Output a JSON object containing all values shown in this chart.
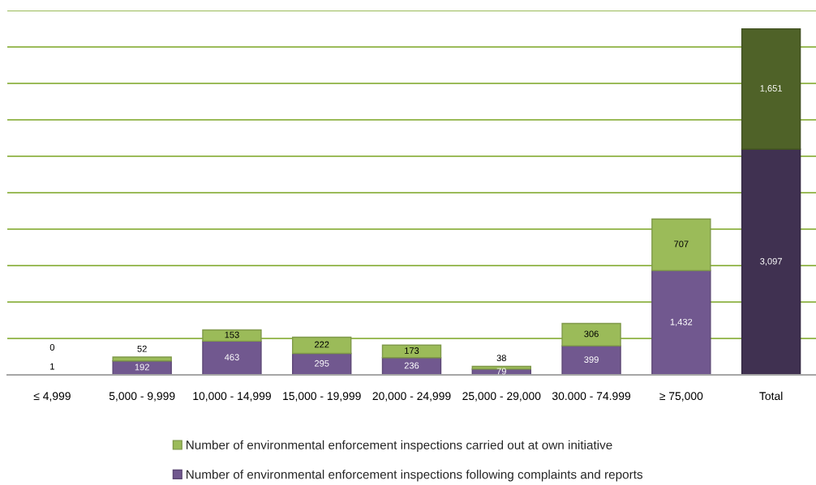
{
  "chart_data": {
    "type": "bar",
    "stacked": true,
    "categories": [
      "≤ 4,999",
      "5,000 - 9,999",
      "10,000 - 14,999",
      "15,000 - 19,999",
      "20,000 - 24,999",
      "25,000 - 29,000",
      "30.000 - 74.999",
      "≥ 75,000",
      "Total"
    ],
    "series": [
      {
        "name": "Number of environmental enforcement inspections following complaints and reports",
        "color": "#71588f",
        "colors": [
          "#71588f",
          "#71588f",
          "#71588f",
          "#71588f",
          "#71588f",
          "#71588f",
          "#71588f",
          "#71588f",
          "#403151"
        ],
        "values": [
          1,
          192,
          463,
          295,
          236,
          79,
          399,
          1432,
          3097
        ],
        "value_labels": [
          "1",
          "192",
          "463",
          "295",
          "236",
          "79",
          "399",
          "1,432",
          "3,097"
        ]
      },
      {
        "name": "Number of environmental enforcement inspections carried out at own initiative",
        "color": "#9bbb59",
        "colors": [
          "#9bbb59",
          "#9bbb59",
          "#9bbb59",
          "#9bbb59",
          "#9bbb59",
          "#9bbb59",
          "#9bbb59",
          "#9bbb59",
          "#4f6228"
        ],
        "values": [
          0,
          52,
          153,
          222,
          173,
          38,
          306,
          707,
          1651
        ],
        "value_labels": [
          "0",
          "52",
          "153",
          "222",
          "173",
          "38",
          "306",
          "707",
          "1,651"
        ]
      }
    ],
    "ylim": [
      0,
      5000
    ],
    "yticks": [
      {
        "value": 0,
        "label": null
      },
      {
        "value": 500,
        "label": null
      },
      {
        "value": 1000,
        "label": null
      },
      {
        "value": 1500,
        "label": null
      },
      {
        "value": 2000,
        "label": null
      },
      {
        "value": 2500,
        "label": null
      },
      {
        "value": 3000,
        "label": null
      },
      {
        "value": 3500,
        "label": null
      },
      {
        "value": 4000,
        "label": null
      },
      {
        "value": 4500,
        "label": null
      },
      {
        "value": 5000,
        "label": null
      }
    ],
    "tick_labels": "x",
    "grid": "y",
    "legend": "bottom"
  }
}
